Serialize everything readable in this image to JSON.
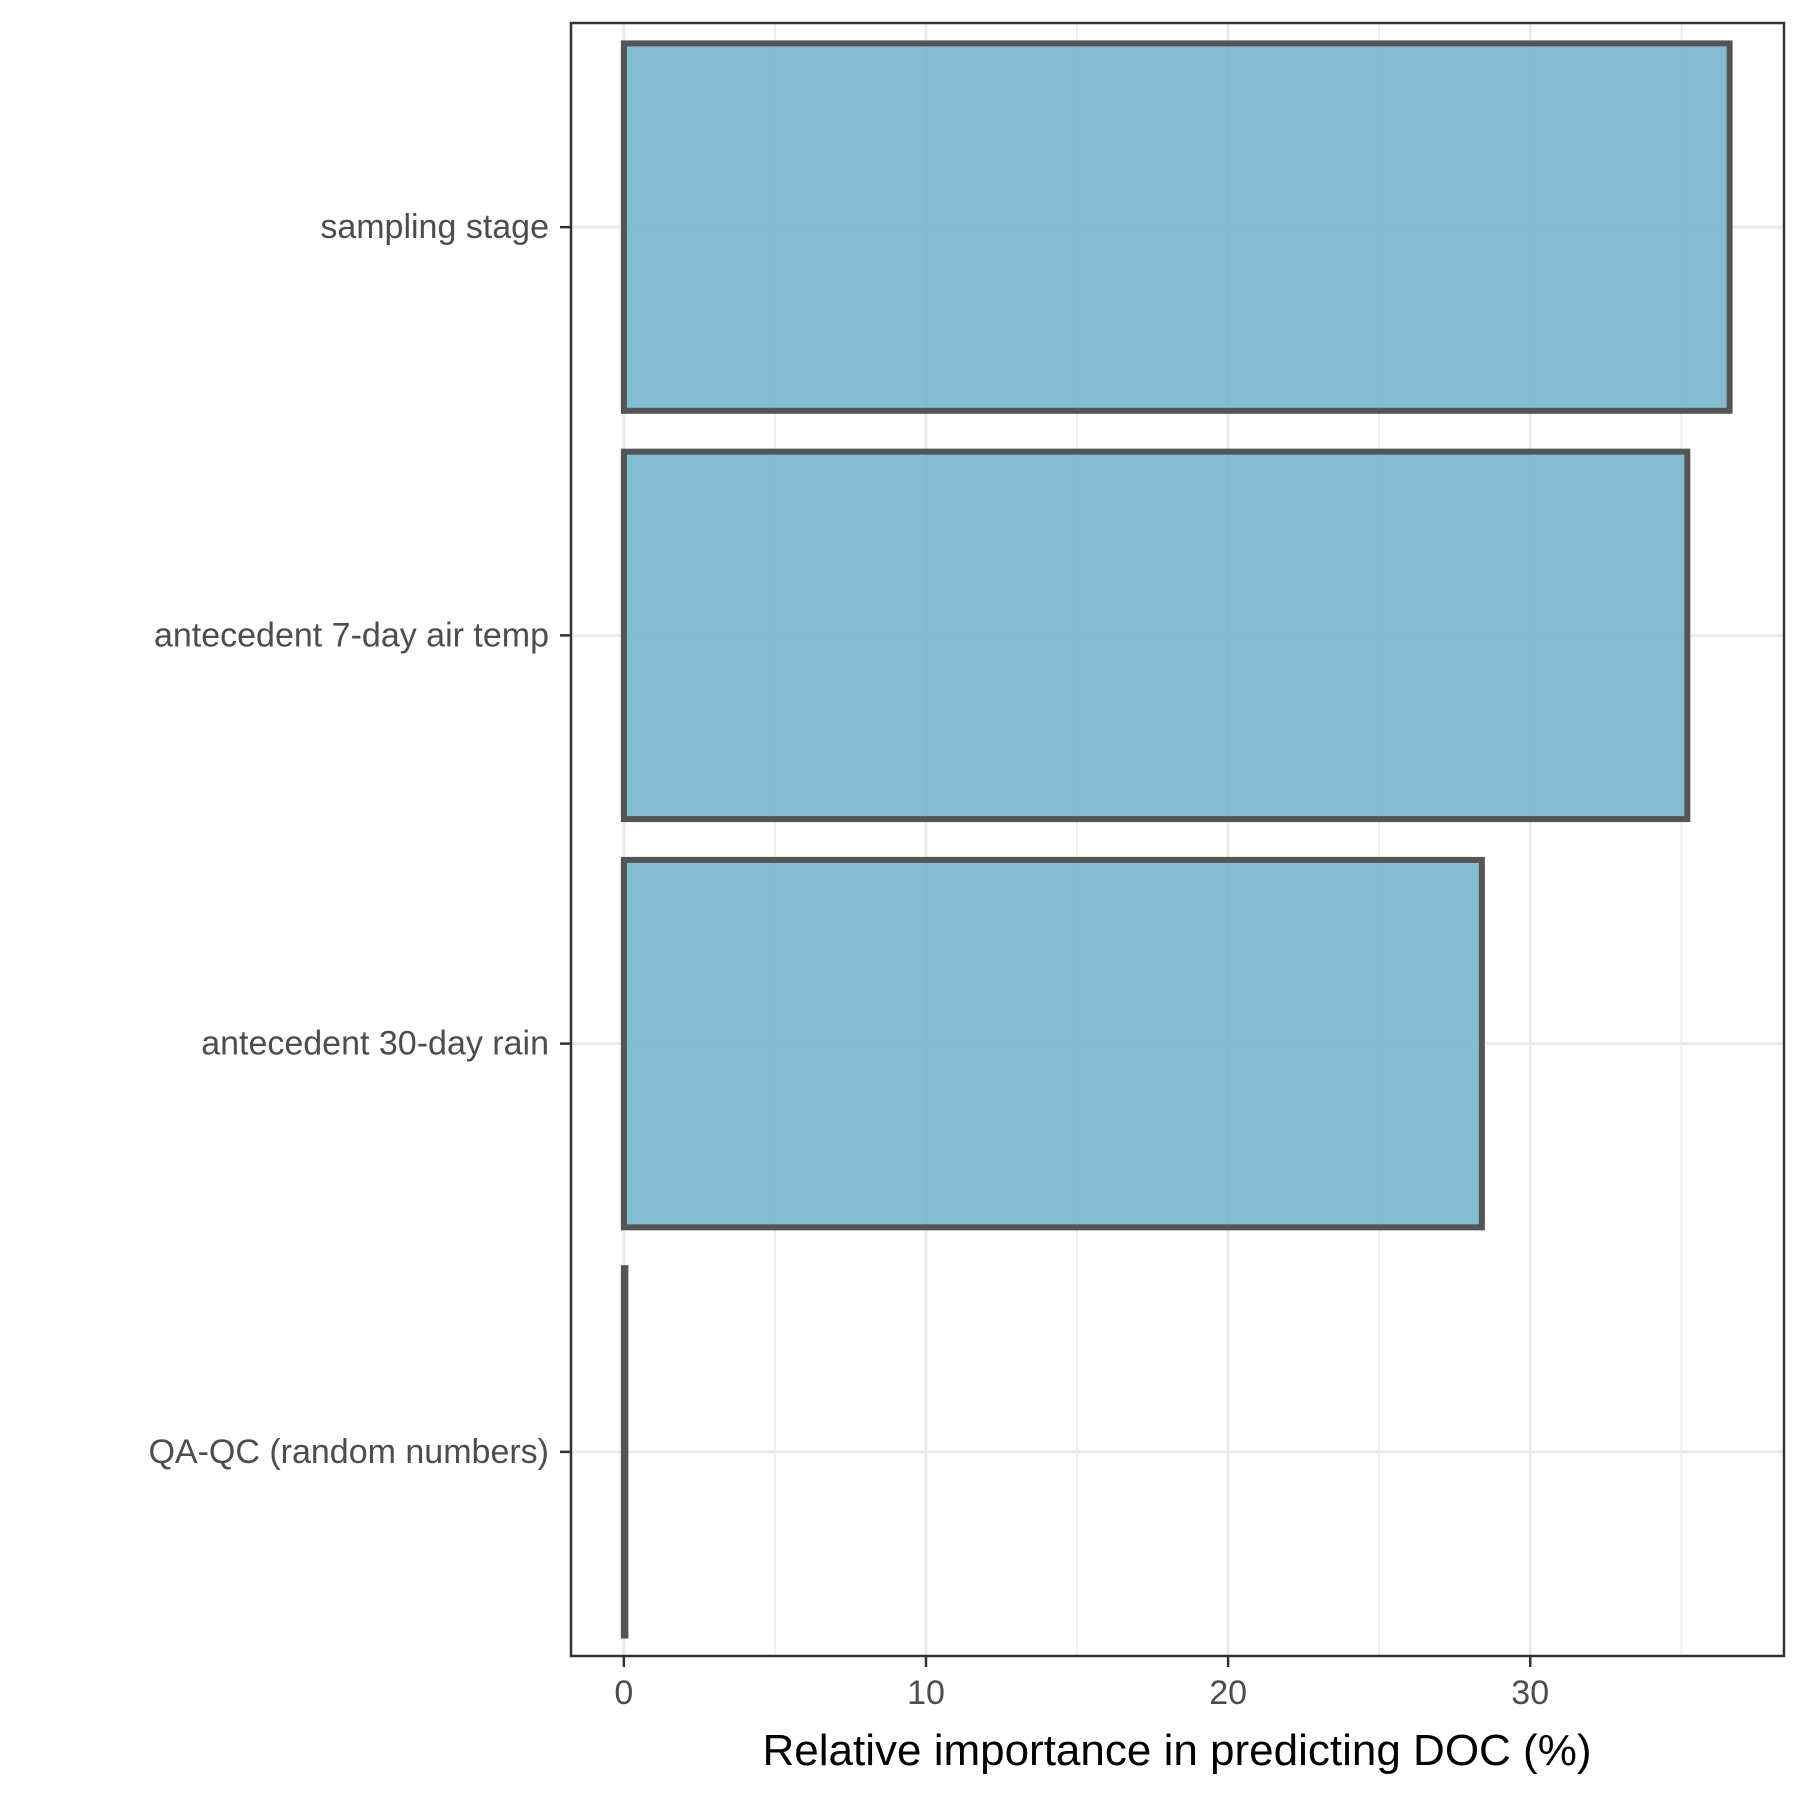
{
  "chart_data": {
    "type": "bar",
    "orientation": "horizontal",
    "title": "",
    "xlabel": "Relative importance in predicting DOC (%)",
    "ylabel": "",
    "categories": [
      "sampling stage",
      "antecedent 7-day air temp",
      "antecedent 30-day rain",
      "QA-QC (random numbers)"
    ],
    "values": [
      36.6,
      35.2,
      28.4,
      0.05
    ],
    "xlim": [
      -1.75,
      38.4
    ],
    "xticks": [
      0,
      10,
      20,
      30
    ],
    "xtick_labels": [
      "0",
      "10",
      "20",
      "30"
    ],
    "grid": true,
    "colors": {
      "bar_fill": "#77b5cd",
      "bar_stroke": "#555555",
      "panel_border": "#333333",
      "grid": "#ebebeb",
      "tick_text": "#4d4d4d"
    }
  }
}
